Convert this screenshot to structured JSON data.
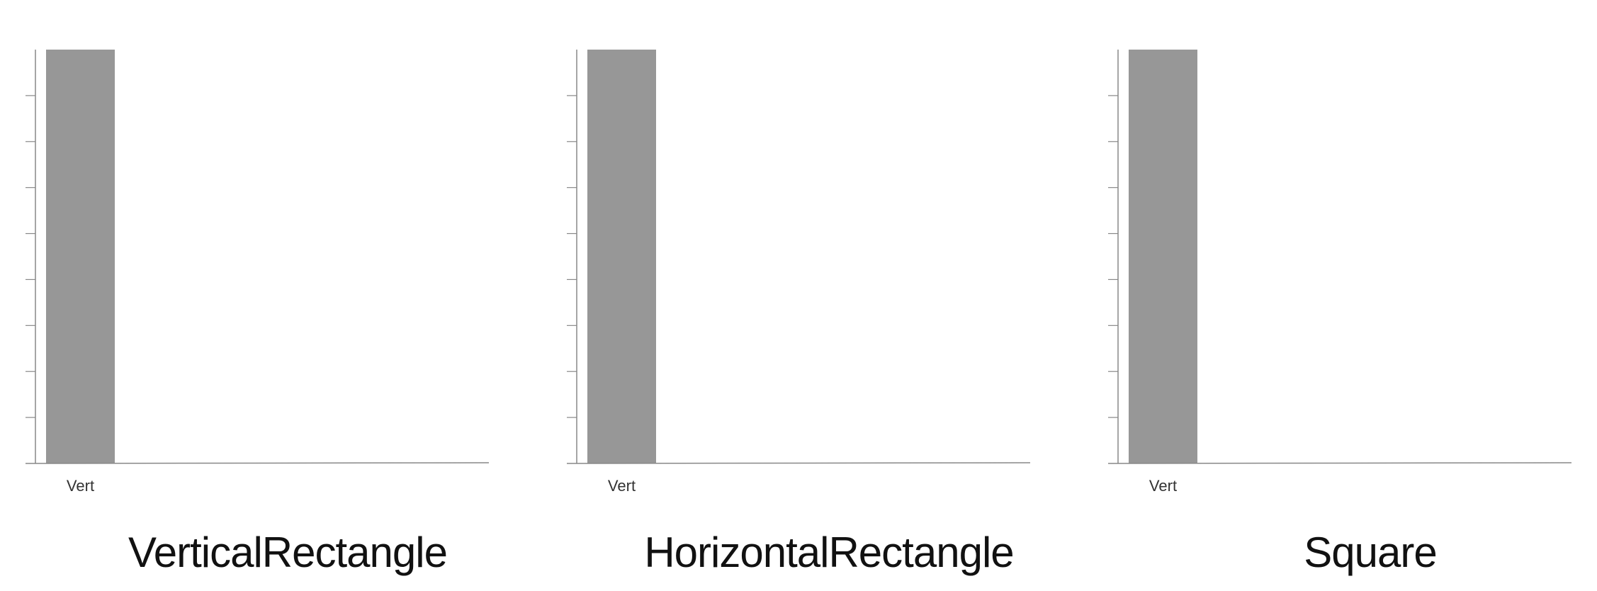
{
  "colors": {
    "bar": "#979797",
    "axis": "#888888",
    "text": "#111111",
    "background": "#ffffff"
  },
  "chart_data": [
    {
      "type": "bar",
      "title": "VerticalRectangle",
      "categories": [
        "Vert"
      ],
      "values": [
        1
      ],
      "ylim": [
        0,
        1
      ],
      "y_ticks": 9,
      "grid": false,
      "legend": "none"
    },
    {
      "type": "bar",
      "title": "HorizontalRectangle",
      "categories": [
        "Vert"
      ],
      "values": [
        1
      ],
      "ylim": [
        0,
        1
      ],
      "y_ticks": 9,
      "grid": false,
      "legend": "none"
    },
    {
      "type": "bar",
      "title": "Square",
      "categories": [
        "Vert"
      ],
      "values": [
        1
      ],
      "ylim": [
        0,
        1
      ],
      "y_ticks": 9,
      "grid": false,
      "legend": "none"
    }
  ]
}
